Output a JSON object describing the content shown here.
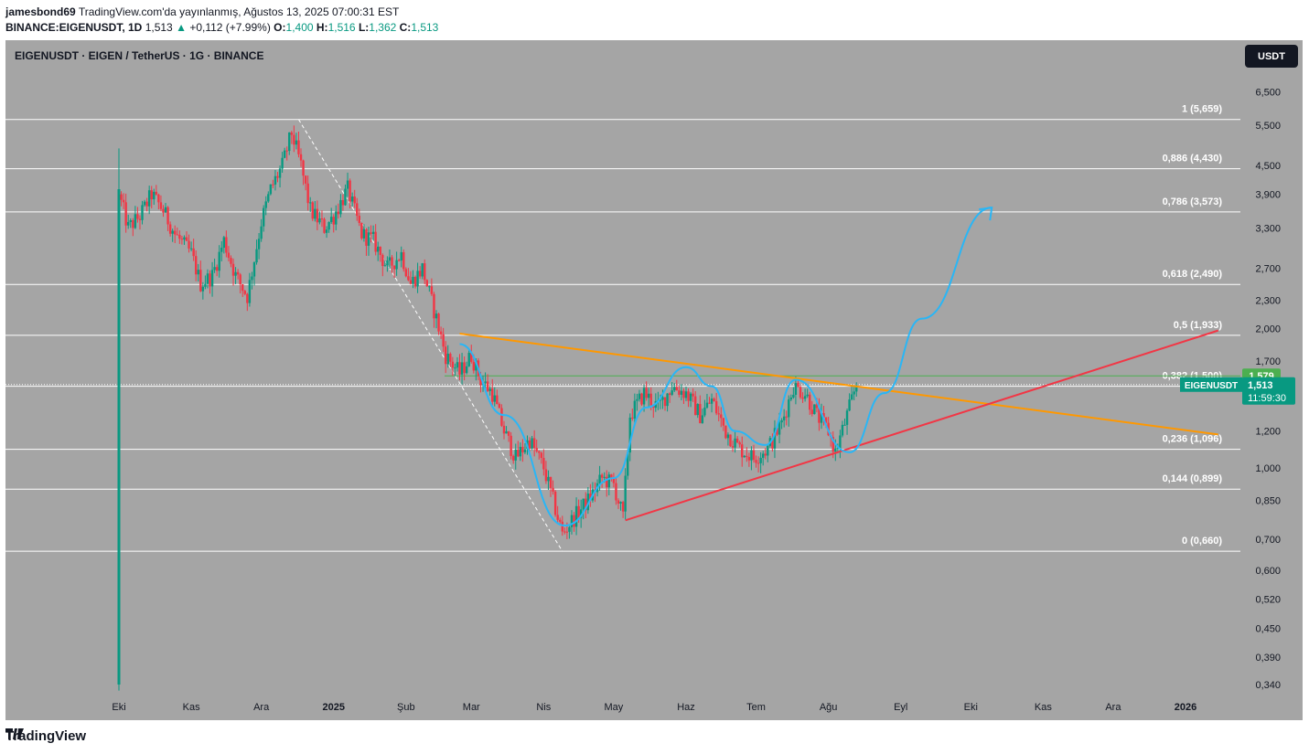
{
  "header": {
    "author": "jamesbond69",
    "published": "TradingView.com'da yayınlanmış, Ağustos 13, 2025 07:00:31 EST",
    "symbol": "BINANCE:EIGENUSDT, 1D",
    "last": "1,513",
    "change": "+0,112 (+7.99%)",
    "o_label": "O:",
    "o": "1,400",
    "h_label": "H:",
    "h": "1,516",
    "l_label": "L:",
    "l": "1,362",
    "c_label": "C:",
    "c": "1,513"
  },
  "chart_title": "EIGENUSDT · EIGEN / TetherUS · 1G · BINANCE",
  "currency_button": "USDT",
  "footer": {
    "brand": "TradingView"
  },
  "colors": {
    "background": "#a5a5a5",
    "up": "#089981",
    "down": "#f23645",
    "fib_line": "#ffffff",
    "orange_trend": "#ff9800",
    "red_trend": "#f23645",
    "projection": "#29b6f6",
    "green_level": "#4caf50",
    "price_label": "#089981"
  },
  "chart_data": {
    "type": "candlestick",
    "y_scale": "log",
    "y_ticks": [
      "6,500",
      "5,500",
      "4,500",
      "3,900",
      "3,300",
      "2,700",
      "2,300",
      "2,000",
      "1,700",
      "1,200",
      "1,000",
      "0,850",
      "0,700",
      "0,600",
      "0,520",
      "0,450",
      "0,390",
      "0,340"
    ],
    "y_tick_values": [
      6.5,
      5.5,
      4.5,
      3.9,
      3.3,
      2.7,
      2.3,
      2.0,
      1.7,
      1.2,
      1.0,
      0.85,
      0.7,
      0.6,
      0.52,
      0.45,
      0.39,
      0.34
    ],
    "x_ticks": [
      "Eki",
      "Kas",
      "Ara",
      "2025",
      "Şub",
      "Mar",
      "Nis",
      "May",
      "Haz",
      "Tem",
      "Ağu",
      "Eyl",
      "Eki",
      "Kas",
      "Ara",
      "2026"
    ],
    "x_tick_dates": [
      "2024-10-01",
      "2024-11-01",
      "2024-12-01",
      "2025-01-01",
      "2025-02-01",
      "2025-03-01",
      "2025-04-01",
      "2025-05-01",
      "2025-06-01",
      "2025-07-01",
      "2025-08-01",
      "2025-09-01",
      "2025-10-01",
      "2025-11-01",
      "2025-12-01",
      "2026-01-01"
    ],
    "fib_levels": [
      {
        "label": "1 (5,659)",
        "value": 5.659
      },
      {
        "label": "0,886 (4,430)",
        "value": 4.43
      },
      {
        "label": "0,786 (3,573)",
        "value": 3.573
      },
      {
        "label": "0,618 (2,490)",
        "value": 2.49
      },
      {
        "label": "0,5 (1,933)",
        "value": 1.933
      },
      {
        "label": "0,382 (1,500)",
        "value": 1.5
      },
      {
        "label": "0,236 (1,096)",
        "value": 1.096
      },
      {
        "label": "0,144 (0,899)",
        "value": 0.899
      },
      {
        "label": "0 (0,660)",
        "value": 0.66
      }
    ],
    "price_labels": {
      "level_price": "1,579",
      "symbol": "EIGENUSDT",
      "current_price": "1,513",
      "countdown": "11:59:30"
    },
    "close_path": [
      [
        "2024-10-01",
        3.9
      ],
      [
        "2024-10-05",
        3.3
      ],
      [
        "2024-10-10",
        3.5
      ],
      [
        "2024-10-15",
        3.9
      ],
      [
        "2024-10-20",
        3.6
      ],
      [
        "2024-10-25",
        3.2
      ],
      [
        "2024-11-01",
        2.9
      ],
      [
        "2024-11-05",
        2.5
      ],
      [
        "2024-11-10",
        2.6
      ],
      [
        "2024-11-15",
        3.1
      ],
      [
        "2024-11-20",
        2.6
      ],
      [
        "2024-11-25",
        2.35
      ],
      [
        "2024-12-01",
        3.4
      ],
      [
        "2024-12-05",
        4.0
      ],
      [
        "2024-12-10",
        4.5
      ],
      [
        "2024-12-14",
        5.3
      ],
      [
        "2024-12-18",
        4.5
      ],
      [
        "2024-12-22",
        3.6
      ],
      [
        "2024-12-28",
        3.3
      ],
      [
        "2025-01-01",
        3.5
      ],
      [
        "2025-01-07",
        4.0
      ],
      [
        "2025-01-13",
        3.2
      ],
      [
        "2025-01-18",
        3.1
      ],
      [
        "2025-01-24",
        2.7
      ],
      [
        "2025-01-30",
        2.9
      ],
      [
        "2025-02-03",
        2.5
      ],
      [
        "2025-02-08",
        2.7
      ],
      [
        "2025-02-14",
        2.1
      ],
      [
        "2025-02-18",
        1.75
      ],
      [
        "2025-02-24",
        1.6
      ],
      [
        "2025-03-01",
        1.75
      ],
      [
        "2025-03-05",
        1.55
      ],
      [
        "2025-03-10",
        1.45
      ],
      [
        "2025-03-15",
        1.2
      ],
      [
        "2025-03-20",
        1.05
      ],
      [
        "2025-03-26",
        1.15
      ],
      [
        "2025-04-01",
        1.0
      ],
      [
        "2025-04-05",
        0.85
      ],
      [
        "2025-04-09",
        0.72
      ],
      [
        "2025-04-14",
        0.78
      ],
      [
        "2025-04-20",
        0.85
      ],
      [
        "2025-04-26",
        0.95
      ],
      [
        "2025-05-01",
        0.92
      ],
      [
        "2025-05-05",
        0.78
      ],
      [
        "2025-05-08",
        1.3
      ],
      [
        "2025-05-14",
        1.45
      ],
      [
        "2025-05-20",
        1.35
      ],
      [
        "2025-05-26",
        1.5
      ],
      [
        "2025-06-01",
        1.45
      ],
      [
        "2025-06-07",
        1.3
      ],
      [
        "2025-06-12",
        1.4
      ],
      [
        "2025-06-18",
        1.2
      ],
      [
        "2025-06-24",
        1.1
      ],
      [
        "2025-06-30",
        1.05
      ],
      [
        "2025-07-06",
        1.1
      ],
      [
        "2025-07-12",
        1.25
      ],
      [
        "2025-07-17",
        1.5
      ],
      [
        "2025-07-22",
        1.45
      ],
      [
        "2025-07-27",
        1.3
      ],
      [
        "2025-08-01",
        1.2
      ],
      [
        "2025-08-04",
        1.08
      ],
      [
        "2025-08-08",
        1.25
      ],
      [
        "2025-08-13",
        1.513
      ]
    ],
    "drawings": {
      "orange_line": [
        [
          "2025-02-24",
          1.95
        ],
        [
          "2026-01-15",
          1.18
        ]
      ],
      "red_line": [
        [
          "2025-05-06",
          0.77
        ],
        [
          "2026-01-15",
          1.98
        ]
      ],
      "green_level": 1.58,
      "projection_curve": [
        [
          "2025-02-24",
          1.85
        ],
        [
          "2025-03-15",
          1.3
        ],
        [
          "2025-04-10",
          0.75
        ],
        [
          "2025-05-01",
          0.95
        ],
        [
          "2025-05-15",
          1.35
        ],
        [
          "2025-06-01",
          1.65
        ],
        [
          "2025-06-12",
          1.5
        ],
        [
          "2025-06-22",
          1.2
        ],
        [
          "2025-07-05",
          1.12
        ],
        [
          "2025-07-18",
          1.55
        ],
        [
          "2025-08-10",
          1.08
        ],
        [
          "2025-08-25",
          1.45
        ],
        [
          "2025-09-10",
          2.1
        ],
        [
          "2025-10-10",
          3.65
        ]
      ]
    }
  }
}
